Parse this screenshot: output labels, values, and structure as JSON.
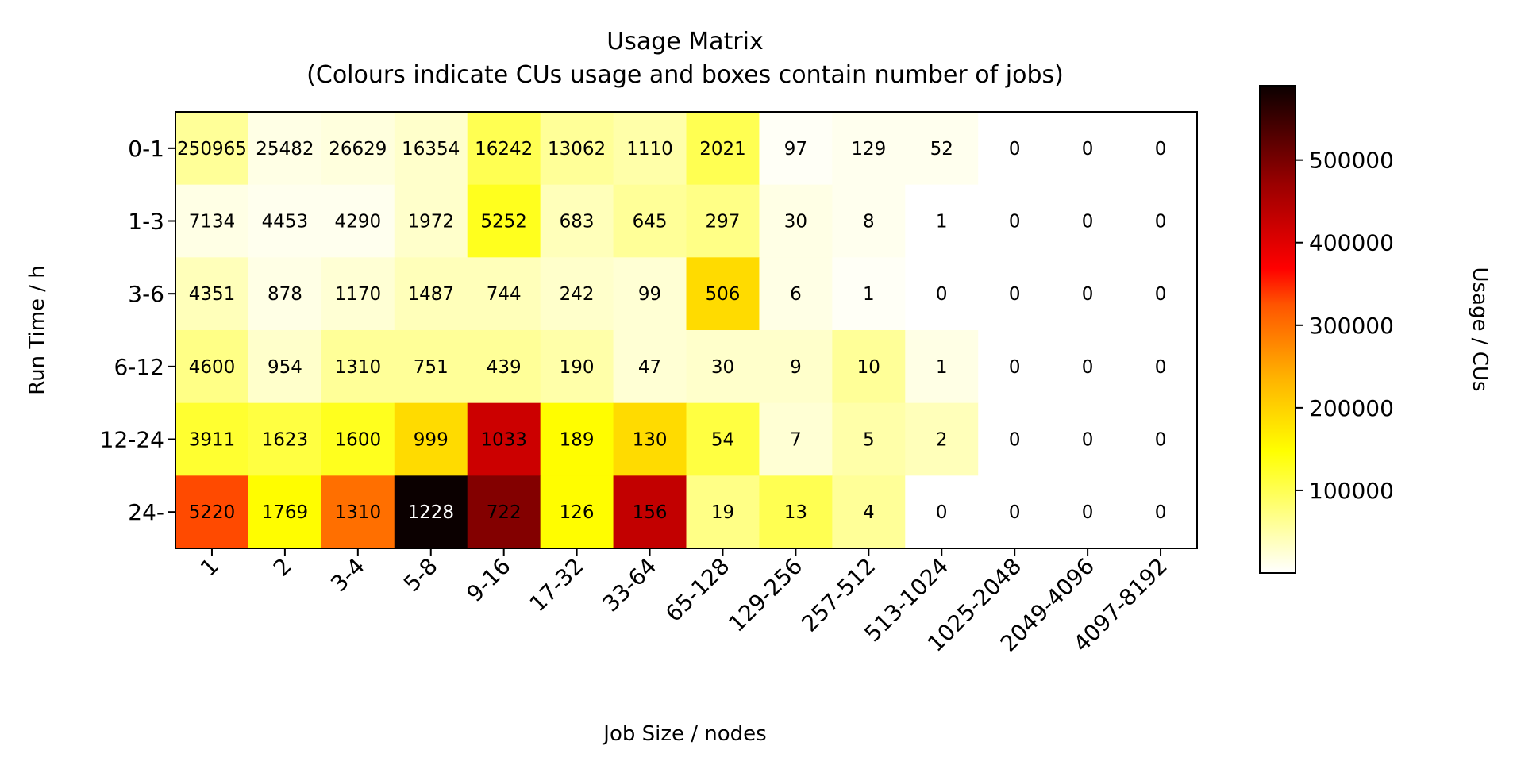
{
  "chart_data": {
    "type": "heatmap",
    "title_line1": "Usage Matrix",
    "title_line2": "(Colours indicate CUs usage and boxes contain number of jobs)",
    "xlabel": "Job Size / nodes",
    "ylabel": "Run Time / h",
    "colorbar_label": "Usage / CUs",
    "colormap": "hot_r",
    "colorbar_range": [
      0,
      590000
    ],
    "colorbar_ticks": [
      100000,
      200000,
      300000,
      400000,
      500000
    ],
    "colorbar_tick_labels": [
      "100000",
      "200000",
      "300000",
      "400000",
      "500000"
    ],
    "x_categories": [
      "1",
      "2",
      "3-4",
      "5-8",
      "9-16",
      "17-32",
      "33-64",
      "65-128",
      "129-256",
      "257-512",
      "513-1024",
      "1025-2048",
      "2049-4096",
      "4097-8192"
    ],
    "y_categories": [
      "0-1",
      "1-3",
      "3-6",
      "6-12",
      "12-24",
      "24-"
    ],
    "jobs": [
      [
        "250965",
        "25482",
        "26629",
        "16354",
        "16242",
        "13062",
        "1110",
        "2021",
        "97",
        "129",
        "52",
        "0",
        "0",
        "0"
      ],
      [
        "7134",
        "4453",
        "4290",
        "1972",
        "5252",
        "683",
        "645",
        "297",
        "30",
        "8",
        "1",
        "0",
        "0",
        "0"
      ],
      [
        "4351",
        "878",
        "1170",
        "1487",
        "744",
        "242",
        "99",
        "506",
        "6",
        "1",
        "0",
        "0",
        "0",
        "0"
      ],
      [
        "4600",
        "954",
        "1310",
        "751",
        "439",
        "190",
        "47",
        "30",
        "9",
        "10",
        "1",
        "0",
        "0",
        "0"
      ],
      [
        "3911",
        "1623",
        "1600",
        "999",
        "1033",
        "189",
        "130",
        "54",
        "7",
        "5",
        "2",
        "0",
        "0",
        "0"
      ],
      [
        "5220",
        "1769",
        "1310",
        "1228",
        "722",
        "126",
        "156",
        "19",
        "13",
        "4",
        "0",
        "0",
        "0",
        "0"
      ]
    ],
    "usage": [
      [
        60000,
        15000,
        20000,
        30000,
        100000,
        60000,
        50000,
        100000,
        5000,
        10000,
        10000,
        0,
        0,
        0
      ],
      [
        15000,
        10000,
        10000,
        30000,
        130000,
        40000,
        60000,
        70000,
        15000,
        10000,
        0,
        0,
        0,
        0
      ],
      [
        40000,
        15000,
        25000,
        40000,
        40000,
        30000,
        25000,
        190000,
        15000,
        5000,
        0,
        0,
        0,
        0
      ],
      [
        70000,
        30000,
        60000,
        60000,
        60000,
        50000,
        25000,
        30000,
        30000,
        60000,
        15000,
        0,
        0,
        0
      ],
      [
        120000,
        110000,
        130000,
        190000,
        420000,
        150000,
        190000,
        110000,
        25000,
        50000,
        40000,
        0,
        0,
        0
      ],
      [
        330000,
        150000,
        300000,
        590000,
        490000,
        150000,
        430000,
        70000,
        100000,
        60000,
        0,
        0,
        0,
        0
      ]
    ]
  }
}
